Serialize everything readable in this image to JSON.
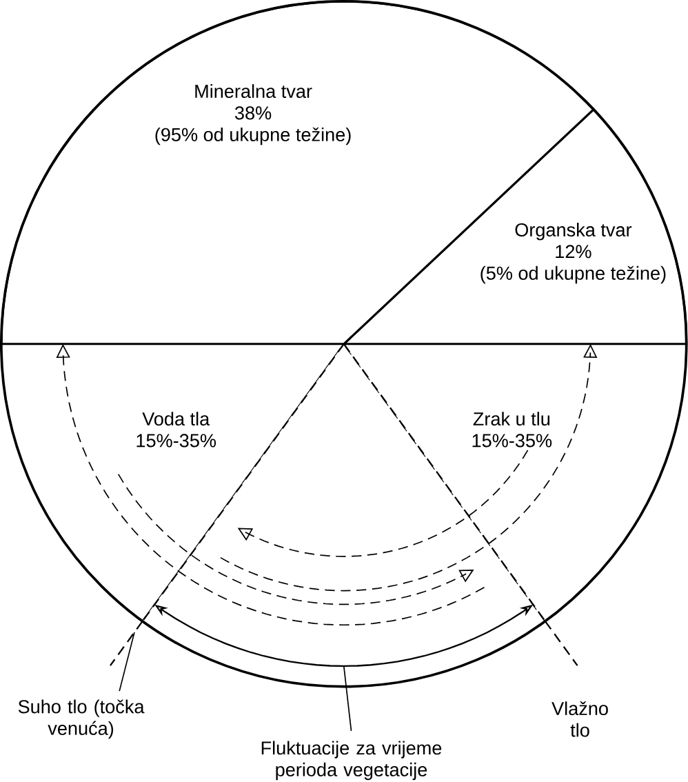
{
  "chart_data": {
    "type": "pie",
    "categories": [
      "Organska tvar",
      "Mineralna tvar",
      "Voda tla",
      null,
      "Zrak u tlu"
    ],
    "values": [
      12,
      38,
      15,
      20,
      15
    ],
    "value_labels": [
      "12%",
      "38%",
      "15%-35%",
      null,
      "15%-35%"
    ],
    "colors": [
      "#ffffff",
      "#ffffff",
      "#ffffff",
      "#ffffff",
      "#ffffff"
    ],
    "annotations": [
      "(5% od ukupne težine)",
      "(95% od ukupne težine)",
      "Suho tlo (točka venuća)",
      "Vlažno tlo",
      "Fluktuacije za vrijeme perioda vegetacije"
    ]
  }
}
